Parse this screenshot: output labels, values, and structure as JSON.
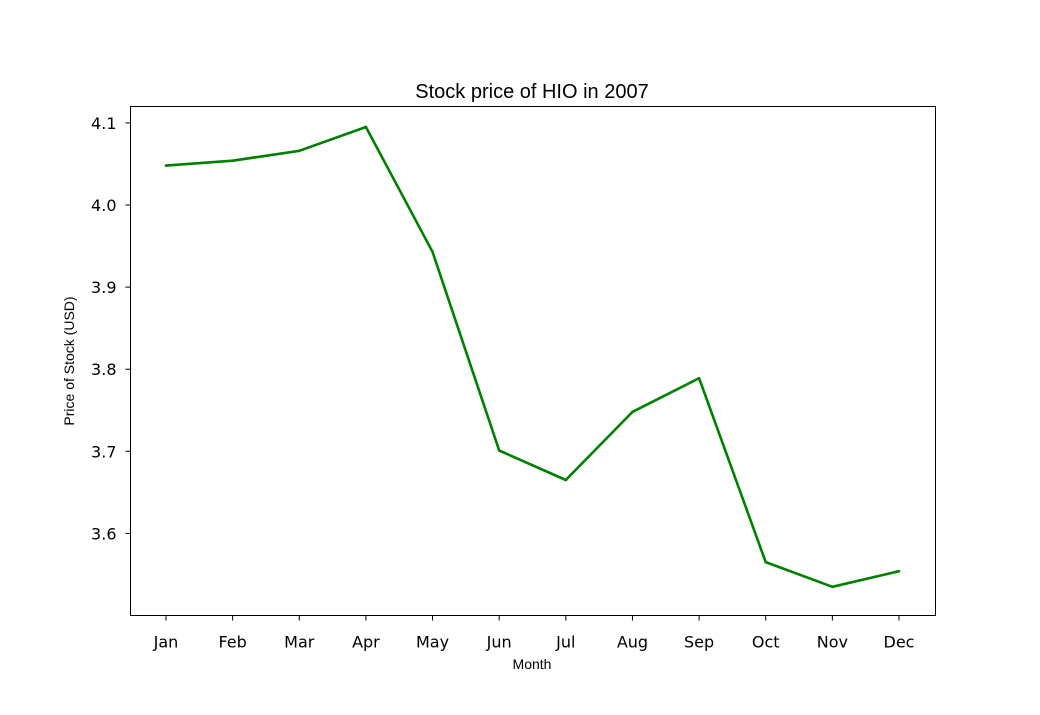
{
  "chart_data": {
    "type": "line",
    "title": "Stock price of HIO in 2007",
    "xlabel": "Month",
    "ylabel": "Price of Stock (USD)",
    "categories": [
      "Jan",
      "Feb",
      "Mar",
      "Apr",
      "May",
      "Jun",
      "Jul",
      "Aug",
      "Sep",
      "Oct",
      "Nov",
      "Dec"
    ],
    "series": [
      {
        "color": "#008000",
        "values": [
          4.048,
          4.054,
          4.066,
          4.095,
          3.943,
          3.701,
          3.665,
          3.748,
          3.789,
          3.565,
          3.535,
          3.554
        ]
      }
    ],
    "y_ticks": [
      "3.6",
      "3.7",
      "3.8",
      "3.9",
      "4.0",
      "4.1"
    ],
    "ylim": [
      3.5,
      4.12
    ],
    "grid": false,
    "legend": "none"
  }
}
